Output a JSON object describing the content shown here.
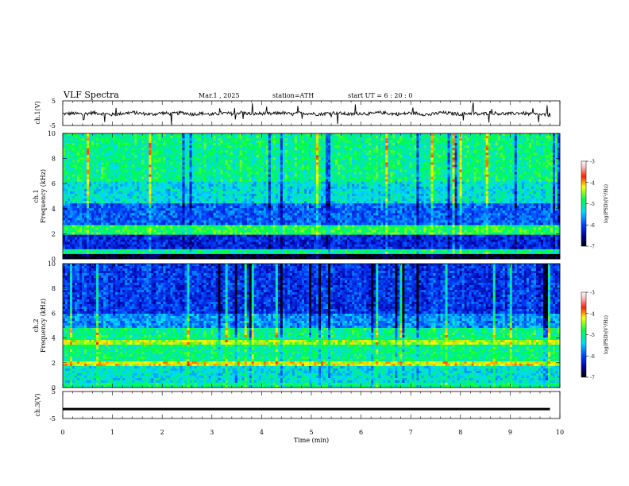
{
  "header": {
    "title": "VLF  Spectra",
    "date": "Mar.1  , 2025",
    "station": "station=ATH",
    "start_ut": "start  UT  =   6  : 20 : 0"
  },
  "chart_data": [
    {
      "type": "line",
      "panel": "ch1-waveform",
      "ylabel": "ch.1(V)",
      "ylim": [
        -5,
        5
      ],
      "yticks": [
        5,
        -5
      ],
      "xlim": [
        0,
        10
      ],
      "x": [
        0.0,
        0.2,
        0.4,
        0.6,
        0.8,
        1.0,
        1.2,
        1.4,
        1.6,
        1.8,
        2.0,
        2.2,
        2.4,
        2.6,
        2.8,
        3.0,
        3.2,
        3.4,
        3.6,
        3.8,
        4.0,
        4.2,
        4.4,
        4.6,
        4.8,
        5.0,
        5.2,
        5.4,
        5.6,
        5.8,
        6.0,
        6.2,
        6.4,
        6.6,
        6.8,
        7.0,
        7.2,
        7.4,
        7.6,
        7.8,
        8.0,
        8.2,
        8.4,
        8.6,
        8.8,
        9.0,
        9.2,
        9.4,
        9.6,
        9.8
      ],
      "values": [
        -0.3,
        -0.1,
        -0.4,
        0.2,
        -0.2,
        -0.6,
        -0.1,
        0.3,
        -0.2,
        -0.5,
        0.1,
        -0.3,
        0.2,
        -0.4,
        -0.1,
        -0.6,
        0.0,
        -0.2,
        0.3,
        -0.4,
        -0.1,
        -0.3,
        0.2,
        -0.5,
        0.1,
        -0.2,
        -0.4,
        0.2,
        -0.1,
        -0.5,
        0.0,
        -0.3,
        0.3,
        -0.2,
        -0.4,
        0.1,
        -0.3,
        -0.6,
        0.2,
        -0.1,
        -0.4,
        0.0,
        -0.5,
        0.2,
        -0.2,
        -0.3,
        0.1,
        -0.4,
        -0.6,
        -0.8
      ]
    },
    {
      "type": "heatmap",
      "panel": "ch1-spectrogram",
      "ylabel": "ch.1\nFrequency  (kHz)",
      "ylim": [
        0,
        10
      ],
      "yticks": [
        0,
        2,
        4,
        6,
        8,
        10
      ],
      "xlim": [
        0,
        10
      ],
      "colorbar": {
        "label": "log(PSD)(V²/Hz)",
        "range": [
          -7,
          -3
        ],
        "ticks": [
          -3,
          -4,
          -5,
          -6,
          -7
        ]
      }
    },
    {
      "type": "heatmap",
      "panel": "ch2-spectrogram",
      "ylabel": "ch.2\nFrequency  (kHz)",
      "ylim": [
        0,
        10
      ],
      "yticks": [
        0,
        2,
        4,
        6,
        8,
        10
      ],
      "xlim": [
        0,
        10
      ],
      "colorbar": {
        "label": "log(PSD)(V²/Hz)",
        "range": [
          -7,
          -3
        ],
        "ticks": [
          -3,
          -4,
          -5,
          -6,
          -7
        ]
      }
    },
    {
      "type": "line",
      "panel": "ch3-waveform",
      "ylabel": "ch.3(V)",
      "ylim": [
        -5,
        5
      ],
      "yticks": [
        5,
        -5
      ],
      "xlim": [
        0,
        10
      ],
      "x": [
        0,
        9.8
      ],
      "values": [
        -1.5,
        -1.5
      ],
      "xlabel": "Time  (min)",
      "xticks": [
        0,
        1,
        2,
        3,
        4,
        5,
        6,
        7,
        8,
        9,
        10
      ]
    }
  ]
}
